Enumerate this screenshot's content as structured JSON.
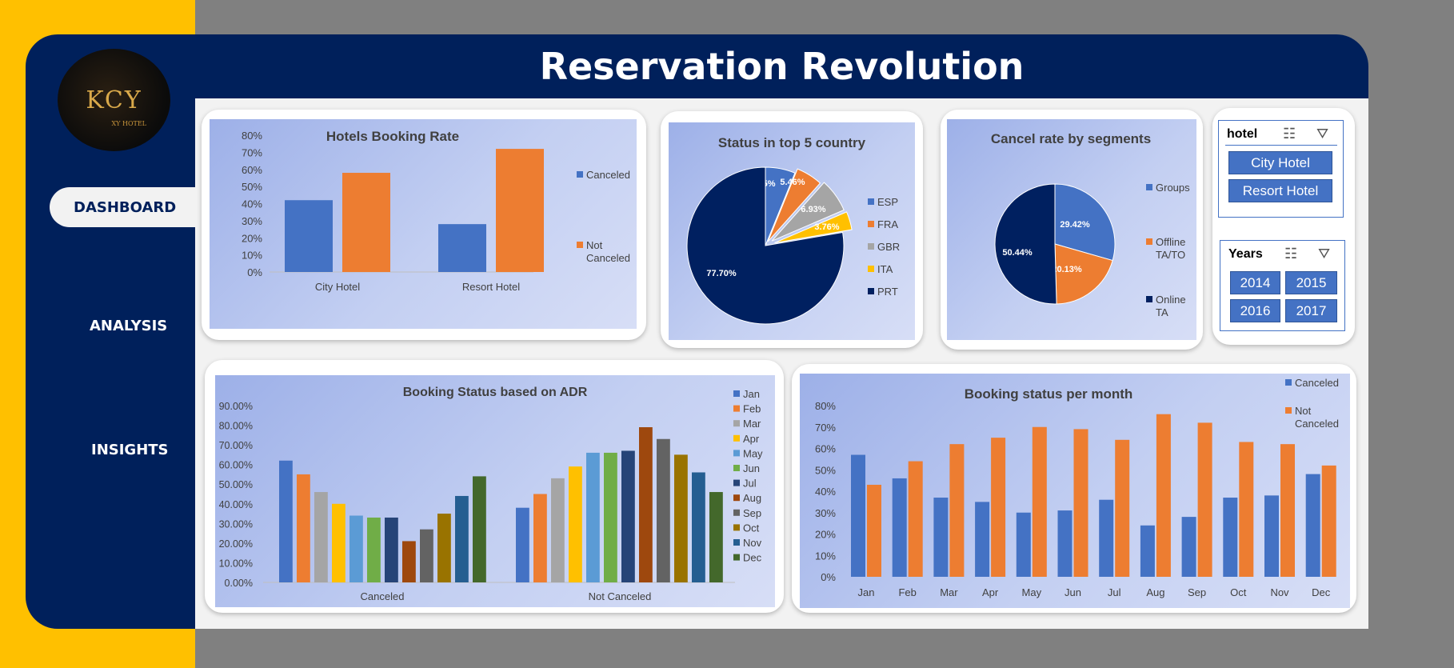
{
  "app": {
    "title": "Reservation Revolution"
  },
  "logo": {
    "text": "KCY",
    "subtext": "XY HOTEL"
  },
  "nav": {
    "dashboard": "DASHBOARD",
    "analysis": "ANALYSIS",
    "insights": "INSIGHTS"
  },
  "slicers": {
    "hotel": {
      "title": "hotel",
      "options": [
        "City Hotel",
        "Resort Hotel"
      ]
    },
    "years": {
      "title": "Years",
      "options": [
        "2014",
        "2015",
        "2016",
        "2017"
      ]
    }
  },
  "icons": [
    "multi-select-icon",
    "clear-filter-icon"
  ],
  "colors": {
    "blue": "#4472c4",
    "orange": "#ed7d31",
    "navy": "#00205b",
    "accent": "#ffc000"
  },
  "chart_data": [
    {
      "id": "hotels_booking_rate",
      "type": "bar",
      "title": "Hotels Booking Rate",
      "categories": [
        "City Hotel",
        "Resort Hotel"
      ],
      "series": [
        {
          "name": "Canceled",
          "values": [
            0.42,
            0.28
          ]
        },
        {
          "name": "Not Canceled",
          "values": [
            0.58,
            0.72
          ]
        }
      ],
      "ylim": [
        0,
        0.8
      ],
      "yticks": [
        "0%",
        "10%",
        "20%",
        "30%",
        "40%",
        "50%",
        "60%",
        "70%",
        "80%"
      ],
      "legend": "right"
    },
    {
      "id": "status_top5_country",
      "type": "pie",
      "title": "Status in top 5 country",
      "labels": [
        "ESP",
        "FRA",
        "GBR",
        "ITA",
        "PRT"
      ],
      "values": [
        6.15,
        5.46,
        6.93,
        3.76,
        77.7
      ],
      "value_labels": [
        "6.15%",
        "5.46%",
        "6.93%",
        "3.76%",
        "77.70%"
      ],
      "legend": "right"
    },
    {
      "id": "cancel_rate_segments",
      "type": "pie",
      "title": "Cancel rate by segments",
      "labels": [
        "Groups",
        "Offline TA/TO",
        "Online TA"
      ],
      "values": [
        29.42,
        20.13,
        50.44
      ],
      "value_labels": [
        "29.42%",
        "20.13%",
        "50.44%"
      ],
      "legend": "right"
    },
    {
      "id": "booking_status_adr",
      "type": "bar",
      "title": "Booking Status based on ADR",
      "categories": [
        "Canceled",
        "Not Canceled"
      ],
      "series": [
        {
          "name": "Jan",
          "values": [
            0.62,
            0.38
          ]
        },
        {
          "name": "Feb",
          "values": [
            0.55,
            0.45
          ]
        },
        {
          "name": "Mar",
          "values": [
            0.46,
            0.53
          ]
        },
        {
          "name": "Apr",
          "values": [
            0.4,
            0.59
          ]
        },
        {
          "name": "May",
          "values": [
            0.34,
            0.66
          ]
        },
        {
          "name": "Jun",
          "values": [
            0.33,
            0.66
          ]
        },
        {
          "name": "Jul",
          "values": [
            0.33,
            0.67
          ]
        },
        {
          "name": "Aug",
          "values": [
            0.21,
            0.79
          ]
        },
        {
          "name": "Sep",
          "values": [
            0.27,
            0.73
          ]
        },
        {
          "name": "Oct",
          "values": [
            0.35,
            0.65
          ]
        },
        {
          "name": "Nov",
          "values": [
            0.44,
            0.56
          ]
        },
        {
          "name": "Dec",
          "values": [
            0.54,
            0.46
          ]
        }
      ],
      "ylim": [
        0,
        0.9
      ],
      "yticks": [
        "0.00%",
        "10.00%",
        "20.00%",
        "30.00%",
        "40.00%",
        "50.00%",
        "60.00%",
        "70.00%",
        "80.00%",
        "90.00%"
      ],
      "legend": "right"
    },
    {
      "id": "booking_status_month",
      "type": "bar",
      "title": "Booking status per month",
      "categories": [
        "Jan",
        "Feb",
        "Mar",
        "Apr",
        "May",
        "Jun",
        "Jul",
        "Aug",
        "Sep",
        "Oct",
        "Nov",
        "Dec"
      ],
      "series": [
        {
          "name": "Canceled",
          "values": [
            0.57,
            0.46,
            0.37,
            0.35,
            0.3,
            0.31,
            0.36,
            0.24,
            0.28,
            0.37,
            0.38,
            0.48
          ]
        },
        {
          "name": "Not Canceled",
          "values": [
            0.43,
            0.54,
            0.62,
            0.65,
            0.7,
            0.69,
            0.64,
            0.76,
            0.72,
            0.63,
            0.62,
            0.52
          ]
        }
      ],
      "ylim": [
        0,
        0.8
      ],
      "yticks": [
        "0%",
        "10%",
        "20%",
        "30%",
        "40%",
        "50%",
        "60%",
        "70%",
        "80%"
      ],
      "legend": "top-right"
    }
  ]
}
